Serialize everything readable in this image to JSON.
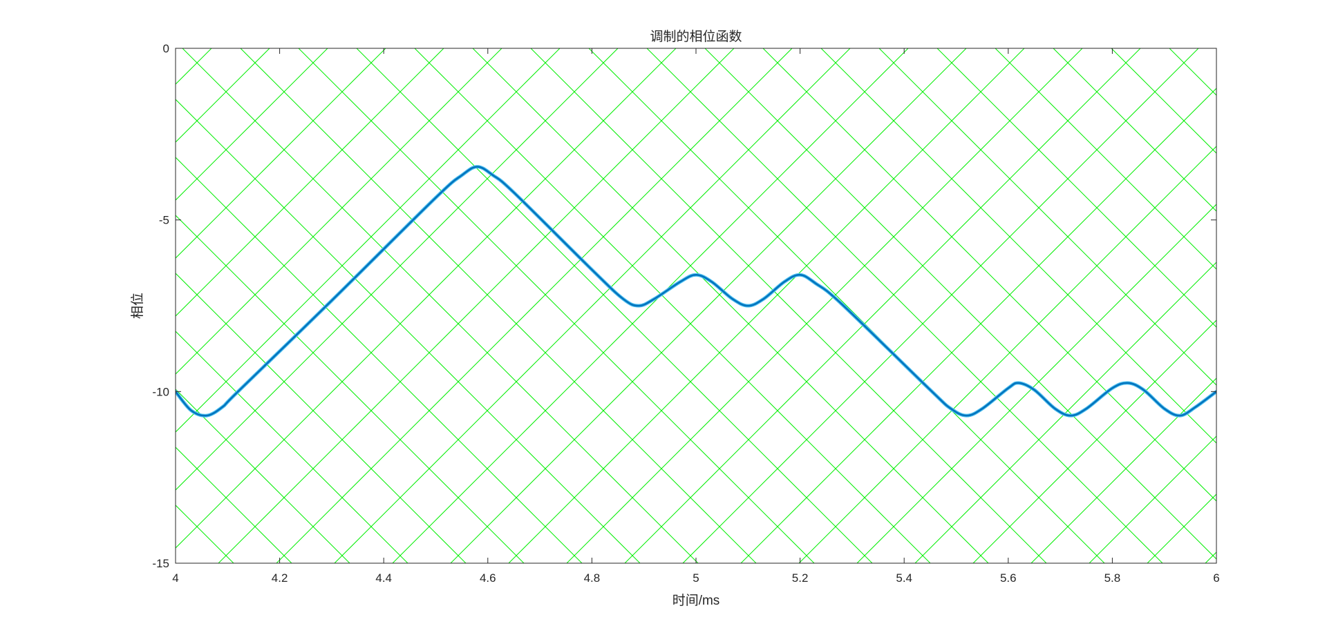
{
  "chart_data": {
    "type": "line",
    "title": "调制的相位函数",
    "xlabel": "时间/ms",
    "ylabel": "相位",
    "xlim": [
      4,
      6
    ],
    "ylim": [
      -15,
      0
    ],
    "x_ticks": [
      "4",
      "4.2",
      "4.4",
      "4.6",
      "4.8",
      "5",
      "5.2",
      "5.4",
      "5.6",
      "5.8",
      "6"
    ],
    "y_ticks": [
      "0",
      "-5",
      "-10",
      "-15"
    ],
    "grid": "diagonal crosshatch",
    "colors": {
      "grid": "#00ee00",
      "line": "#0072bd",
      "line_shadow": "#4dbeee",
      "axes": "#262626"
    },
    "series": [
      {
        "x": [
          4.0,
          4.03,
          4.06,
          4.09,
          4.12,
          4.3,
          4.5,
          4.55,
          4.58,
          4.61,
          4.65,
          4.8,
          4.86,
          4.89,
          4.92,
          4.97,
          5.0,
          5.03,
          5.07,
          5.1,
          5.13,
          5.17,
          5.2,
          5.23,
          5.28,
          5.45,
          5.49,
          5.52,
          5.55,
          5.6,
          5.62,
          5.65,
          5.69,
          5.72,
          5.75,
          5.8,
          5.83,
          5.86,
          5.9,
          5.93,
          5.96,
          6.0
        ],
        "y": [
          -10.0,
          -10.55,
          -10.7,
          -10.45,
          -10.0,
          -7.35,
          -4.35,
          -3.7,
          -3.45,
          -3.7,
          -4.2,
          -6.45,
          -7.3,
          -7.5,
          -7.3,
          -6.8,
          -6.6,
          -6.8,
          -7.3,
          -7.5,
          -7.3,
          -6.8,
          -6.6,
          -6.85,
          -7.45,
          -9.95,
          -10.5,
          -10.7,
          -10.5,
          -9.9,
          -9.75,
          -9.95,
          -10.5,
          -10.7,
          -10.5,
          -9.9,
          -9.75,
          -9.95,
          -10.5,
          -10.7,
          -10.45,
          -10.0
        ]
      }
    ]
  }
}
